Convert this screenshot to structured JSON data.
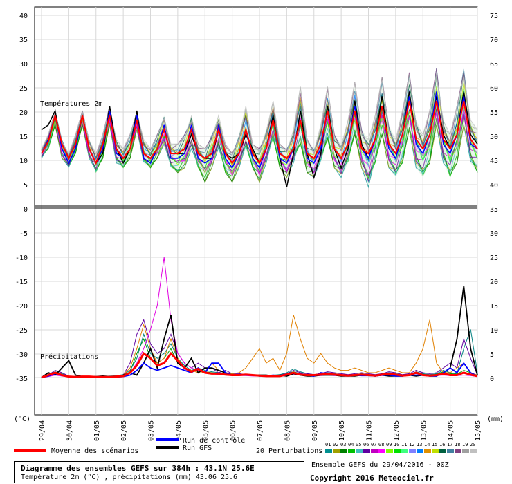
{
  "chart_data": {
    "type": "line",
    "panels": [
      {
        "label": "Températures 2m",
        "left_axis_ticks": [
          "40",
          "35",
          "30",
          "25",
          "20",
          "15",
          "10",
          "5",
          "0"
        ],
        "right_axis_ticks": [
          "75",
          "70",
          "65",
          "60",
          "55",
          "50",
          "45",
          "40",
          "35"
        ],
        "ylim": [
          0,
          40
        ],
        "x_step_hours": 12,
        "series": [
          {
            "name": "Moyenne des scénarios",
            "color": "#ff0000",
            "values": [
              11,
              13.5,
              19,
              13,
              10,
              13,
              19,
              12,
              9,
              13,
              19,
              12,
              10,
              12,
              18,
              11,
              10,
              12,
              16,
              11,
              11,
              12,
              16,
              11,
              10,
              11,
              16,
              11,
              9,
              11,
              16,
              11,
              9,
              12,
              18,
              11,
              10,
              12,
              18,
              11,
              10,
              13,
              20,
              12,
              10,
              13,
              20,
              12,
              11,
              14,
              21,
              13,
              11,
              15,
              22,
              14,
              12,
              15,
              22,
              14,
              12,
              15,
              22,
              14,
              12
            ]
          },
          {
            "name": "Run de contrôle",
            "color": "#0000ff",
            "values": [
              11,
              14,
              19,
              12,
              9,
              12,
              19,
              12,
              9,
              12,
              20,
              11,
              10,
              12,
              19,
              10,
              9,
              12,
              17,
              10,
              10,
              11,
              17,
              10,
              9,
              10,
              17,
              10,
              8,
              11,
              16,
              10,
              8,
              12,
              18,
              10,
              9,
              12,
              18,
              10,
              9,
              12,
              20,
              12,
              10,
              13,
              21,
              12,
              10,
              14,
              21,
              12,
              10,
              15,
              23,
              13,
              11,
              15,
              24,
              13,
              11,
              15,
              23,
              13,
              12
            ]
          },
          {
            "name": "Run GFS",
            "color": "#000000",
            "values": [
              16,
              17,
              20,
              12,
              9,
              12,
              19,
              12,
              9,
              11,
              21,
              12,
              9,
              12,
              20,
              10,
              9,
              12,
              16,
              11,
              11,
              11,
              15,
              11,
              10,
              10,
              16,
              11,
              10,
              11,
              15,
              12,
              9,
              12,
              19,
              10,
              4,
              11,
              20,
              11,
              6,
              11,
              21,
              12,
              8,
              12,
              22,
              13,
              10,
              14,
              23,
              13,
              11,
              15,
              24,
              14,
              12,
              15,
              23,
              15,
              12,
              15,
              24,
              15,
              13
            ]
          }
        ],
        "perturbation_envelope_min": [
          10,
          12,
          17,
          10,
          8,
          11,
          17,
          10,
          7,
          10,
          17,
          9,
          8,
          10,
          16,
          9,
          8,
          10,
          13,
          8,
          7,
          8,
          12,
          8,
          5,
          8,
          12,
          7,
          5,
          8,
          12,
          8,
          5,
          9,
          14,
          8,
          6,
          9,
          13,
          7,
          6,
          9,
          14,
          8,
          6,
          9,
          15,
          8,
          4,
          9,
          15,
          8,
          6,
          9,
          16,
          8,
          6,
          9,
          17,
          9,
          6,
          9,
          17,
          9,
          7
        ],
        "perturbation_envelope_max": [
          12,
          15,
          20,
          14,
          11,
          15,
          20,
          14,
          11,
          15,
          21,
          14,
          12,
          15,
          20,
          14,
          12,
          15,
          19,
          13,
          13,
          15,
          19,
          13,
          12,
          15,
          19,
          13,
          11,
          15,
          21,
          13,
          12,
          16,
          22,
          13,
          12,
          16,
          25,
          14,
          12,
          17,
          25,
          15,
          13,
          18,
          26,
          16,
          14,
          19,
          27,
          17,
          14,
          20,
          28,
          18,
          15,
          20,
          29,
          18,
          15,
          21,
          29,
          18,
          16
        ]
      },
      {
        "label": "Précipitations",
        "left_axis_ticks": [
          "-10",
          "-15",
          "-20",
          "-25",
          "-30",
          "-35"
        ],
        "right_axis_ticks": [
          "25",
          "20",
          "15",
          "10",
          "5",
          "0"
        ],
        "ylim": [
          0,
          25
        ],
        "series": [
          {
            "name": "Moyenne des scénarios",
            "color": "#ff0000",
            "values": [
              0,
              0.5,
              1,
              0.5,
              0.2,
              0.1,
              0.2,
              0.2,
              0.1,
              0.1,
              0.1,
              0.2,
              0.3,
              1,
              2.5,
              5,
              4,
              2.5,
              3,
              5,
              3.5,
              2,
              1.2,
              1.8,
              1,
              0.8,
              0.8,
              0.6,
              0.5,
              0.5,
              0.6,
              0.5,
              0.4,
              0.3,
              0.3,
              0.3,
              0.6,
              1,
              0.6,
              0.5,
              0.5,
              0.6,
              0.7,
              0.6,
              0.5,
              0.4,
              0.5,
              0.6,
              0.5,
              0.4,
              0.6,
              0.8,
              0.6,
              0.4,
              0.5,
              1,
              0.5,
              0.4,
              0.5,
              0.8,
              0.5,
              0.5,
              1,
              0.6,
              0.3
            ]
          },
          {
            "name": "Run de contrôle",
            "color": "#0000ff",
            "values": [
              0,
              0.3,
              0.8,
              0.5,
              0.2,
              0.1,
              0.1,
              0.2,
              0.1,
              0.1,
              0.1,
              0.1,
              0.2,
              0.5,
              1.5,
              3,
              2,
              1.5,
              2,
              2.5,
              2,
              1.5,
              1,
              2,
              1,
              3,
              3,
              1,
              0.5,
              0.5,
              0.5,
              0.5,
              0.3,
              0.3,
              0.5,
              0.3,
              0.5,
              1,
              0.8,
              0.5,
              0.3,
              1,
              0.8,
              0.5,
              0.5,
              0.5,
              0.5,
              0.4,
              0.4,
              0.3,
              0.5,
              0.5,
              0.3,
              0.3,
              0.5,
              0.5,
              0.5,
              0.3,
              0.3,
              1,
              2,
              1,
              3,
              1,
              0.3
            ]
          },
          {
            "name": "Run GFS",
            "color": "#000000",
            "values": [
              0,
              1,
              0.5,
              2,
              3.5,
              0.5,
              0.2,
              0.2,
              0.2,
              0.3,
              0.2,
              0.2,
              0.5,
              1,
              0.5,
              3,
              6,
              2,
              8,
              13,
              3,
              2,
              4,
              1,
              2,
              2,
              1.5,
              1,
              0.5,
              0.5,
              0.5,
              0.5,
              0.5,
              0.5,
              0.3,
              0.5,
              0.3,
              0.8,
              0.5,
              0.3,
              0.3,
              0.5,
              0.5,
              0.5,
              0.3,
              0.3,
              0.3,
              0.5,
              0.5,
              0.3,
              0.5,
              0.3,
              0.3,
              0.3,
              0.5,
              0.3,
              0.5,
              0.3,
              0.3,
              1,
              2,
              8,
              19,
              6,
              0.5
            ]
          },
          {
            "name": "pert-magenta",
            "color": "#e000e0",
            "values": [
              0,
              0.2,
              0.5,
              0.3,
              0.1,
              0.1,
              0.1,
              0.1,
              0.1,
              0.1,
              0.1,
              0.2,
              0.3,
              1,
              3,
              6,
              10,
              15,
              25,
              12,
              5,
              3,
              2,
              1.5,
              1,
              0.8,
              0.6,
              0.5,
              0.4,
              0.4,
              0.4,
              0.3,
              0.3,
              0.3,
              0.3,
              0.3,
              0.5,
              0.7,
              0.5,
              0.4,
              0.3,
              0.4,
              0.5,
              0.4,
              0.4,
              0.3,
              0.4,
              0.5,
              0.4,
              0.3,
              0.4,
              0.5,
              0.4,
              0.3,
              0.4,
              0.5,
              0.4,
              0.3,
              0.4,
              0.5,
              0.4,
              0.4,
              0.5,
              0.4,
              0.2
            ]
          },
          {
            "name": "pert-orange",
            "color": "#e08000",
            "values": [
              0,
              0.3,
              0.6,
              0.3,
              0.1,
              0.1,
              0.2,
              0.1,
              0.1,
              0.1,
              0.2,
              0.3,
              0.5,
              2,
              6,
              11,
              6,
              3,
              4,
              8,
              4,
              2,
              1.5,
              1,
              1,
              3,
              1.5,
              1,
              0.8,
              1,
              2,
              4,
              6,
              3,
              4,
              1.5,
              5,
              13,
              8,
              4,
              3,
              5,
              3,
              2,
              1.5,
              1.5,
              2,
              1.5,
              1,
              1,
              1.5,
              2,
              1.5,
              1,
              1,
              3,
              6,
              12,
              3,
              1,
              1,
              2,
              3,
              1,
              0.5
            ]
          },
          {
            "name": "pert-purple",
            "color": "#6000a0",
            "values": [
              0,
              0.5,
              1.5,
              1,
              0.3,
              0.2,
              0.2,
              0.2,
              0.1,
              0.2,
              0.2,
              0.3,
              0.5,
              3,
              9,
              12,
              7,
              5,
              6,
              9,
              5,
              3,
              2,
              3,
              2,
              2,
              1,
              1.5,
              0.8,
              0.8,
              0.6,
              0.5,
              0.5,
              0.4,
              0.4,
              0.5,
              0.8,
              1.5,
              1,
              0.8,
              0.6,
              0.8,
              1.2,
              1,
              0.8,
              0.6,
              0.8,
              1,
              0.8,
              0.6,
              0.8,
              1.2,
              1,
              0.6,
              0.8,
              1.5,
              1,
              0.8,
              1,
              2,
              3,
              2,
              8,
              4,
              0.5
            ]
          },
          {
            "name": "pert-teal",
            "color": "#008080",
            "values": [
              0,
              0.6,
              1.2,
              0.8,
              0.2,
              0.2,
              0.3,
              0.2,
              0.2,
              0.2,
              0.3,
              0.4,
              0.6,
              1.5,
              4,
              9,
              5,
              4,
              5,
              7,
              4,
              2.5,
              1.5,
              2,
              1.5,
              1.2,
              1,
              0.8,
              0.7,
              0.6,
              0.6,
              0.5,
              0.5,
              0.5,
              0.5,
              0.6,
              1,
              1.8,
              1.2,
              0.8,
              0.6,
              0.8,
              1,
              0.8,
              0.6,
              0.5,
              0.6,
              0.8,
              0.6,
              0.5,
              0.6,
              1,
              0.8,
              0.5,
              0.6,
              1.2,
              0.8,
              0.6,
              0.8,
              1.5,
              1,
              0.8,
              6,
              10,
              1
            ]
          },
          {
            "name": "pert-green",
            "color": "#00a000",
            "values": [
              0,
              0.4,
              0.9,
              0.5,
              0.2,
              0.1,
              0.2,
              0.2,
              0.1,
              0.1,
              0.2,
              0.2,
              0.4,
              1.2,
              5,
              8,
              4,
              3,
              4,
              6,
              3,
              2,
              1.2,
              1.5,
              1.2,
              1,
              0.8,
              0.7,
              0.6,
              0.5,
              0.5,
              0.5,
              0.4,
              0.4,
              0.4,
              0.5,
              0.8,
              1.2,
              0.8,
              0.6,
              0.5,
              0.7,
              0.9,
              0.7,
              0.6,
              0.5,
              0.6,
              0.7,
              0.6,
              0.5,
              0.6,
              0.9,
              0.7,
              0.5,
              0.6,
              1,
              0.7,
              0.5,
              0.7,
              1.2,
              0.8,
              0.7,
              1.5,
              1,
              0.4
            ]
          }
        ]
      }
    ],
    "x_tick_labels": [
      "29/04",
      "30/04",
      "01/05",
      "02/05",
      "03/05",
      "04/05",
      "05/05",
      "06/05",
      "07/05",
      "08/05",
      "09/05",
      "10/05",
      "11/05",
      "12/05",
      "13/05",
      "14/05",
      "15/05"
    ],
    "left_unit": "(°C)",
    "right_unit": "(mm)",
    "grid": true,
    "legend": [
      {
        "label": "Moyenne des scénarios",
        "color": "#ff0000"
      },
      {
        "label": "Run de contrôle",
        "color": "#0000ff"
      },
      {
        "label": "Run GFS",
        "color": "#000000"
      },
      {
        "label": "20 Perturbations",
        "color": ""
      }
    ],
    "perturbation_labels": [
      "01",
      "02",
      "03",
      "04",
      "05",
      "06",
      "07",
      "08",
      "09",
      "10",
      "11",
      "12",
      "13",
      "14",
      "15",
      "16",
      "17",
      "18",
      "19",
      "20"
    ],
    "perturbation_colors": [
      "#009090",
      "#a0a000",
      "#008000",
      "#00c000",
      "#40c0c0",
      "#6000a0",
      "#c000c0",
      "#ff00ff",
      "#80ff00",
      "#00e000",
      "#40ff80",
      "#8080ff",
      "#0080ff",
      "#e09000",
      "#c0e000",
      "#006040",
      "#4080a0",
      "#804080",
      "#a0a0a0",
      "#c0c0c0"
    ]
  },
  "footer": {
    "title": "Diagramme des ensembles GEFS sur 384h : 43.1N 25.6E",
    "subtitle": "Température 2m (°C) , précipitations (mm) 43.06 25.6",
    "run": "Ensemble GEFS du 29/04/2016 - 00Z",
    "copyright": "Copyright 2016 Meteociel.fr"
  }
}
